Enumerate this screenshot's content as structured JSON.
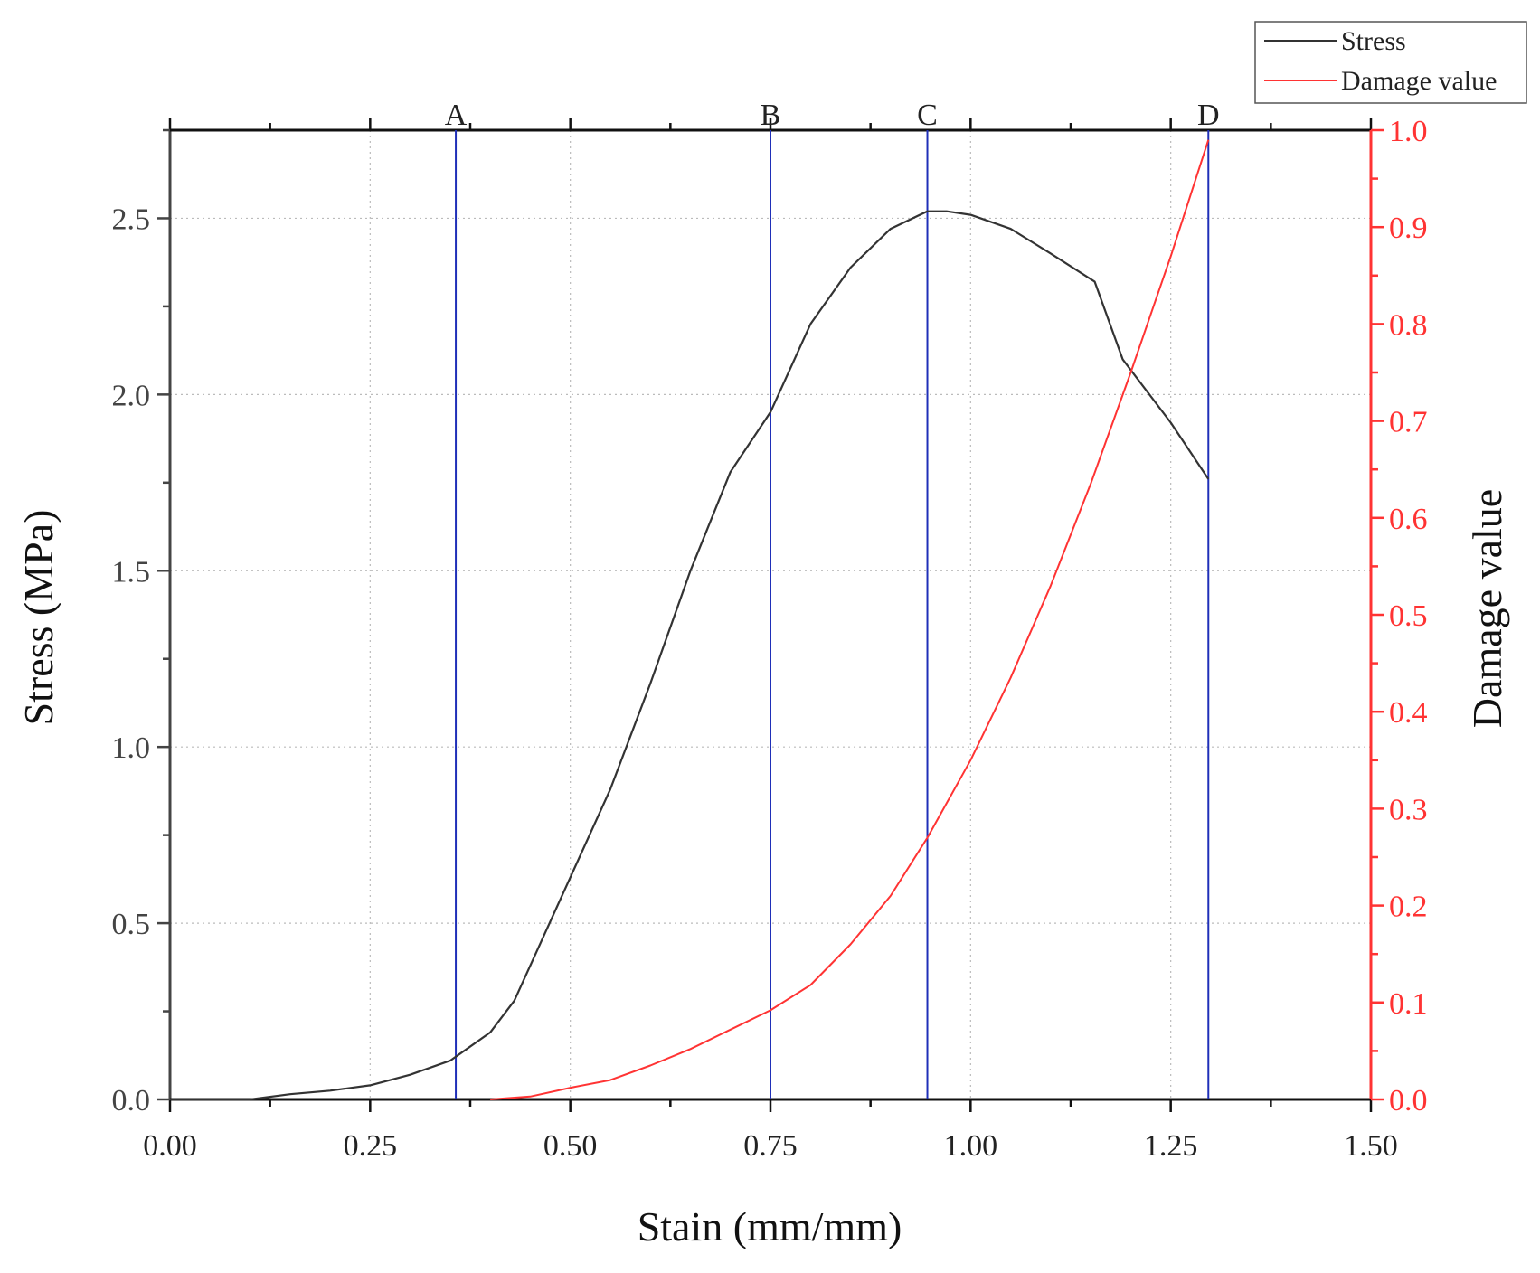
{
  "chart_data": {
    "type": "line",
    "xlabel": "Stain (mm/mm)",
    "ylabel": "Stress (MPa)",
    "y2label": "Damage value",
    "xlim": [
      0,
      1.5
    ],
    "ylim": [
      0,
      2.75
    ],
    "y2lim": [
      0,
      1.0
    ],
    "x_ticks": [
      "0.00",
      "0.25",
      "0.50",
      "0.75",
      "1.00",
      "1.25",
      "1.50"
    ],
    "y_ticks": [
      "0.0",
      "0.5",
      "1.0",
      "1.5",
      "2.0",
      "2.5"
    ],
    "y2_ticks": [
      "0.0",
      "0.1",
      "0.2",
      "0.3",
      "0.4",
      "0.5",
      "0.6",
      "0.7",
      "0.8",
      "0.9",
      "1.0"
    ],
    "grid": true,
    "legend_position": "top-right",
    "markers": [
      {
        "label": "A",
        "x": 0.357
      },
      {
        "label": "B",
        "x": 0.75
      },
      {
        "label": "C",
        "x": 0.946
      },
      {
        "label": "D",
        "x": 1.297
      }
    ],
    "series": [
      {
        "name": "Stress",
        "axis": "left",
        "color": "#333333",
        "points": [
          [
            0.0,
            0.0
          ],
          [
            0.1,
            0.0
          ],
          [
            0.15,
            0.015
          ],
          [
            0.2,
            0.025
          ],
          [
            0.25,
            0.04
          ],
          [
            0.3,
            0.07
          ],
          [
            0.35,
            0.11
          ],
          [
            0.4,
            0.19
          ],
          [
            0.43,
            0.28
          ],
          [
            0.46,
            0.43
          ],
          [
            0.5,
            0.63
          ],
          [
            0.55,
            0.88
          ],
          [
            0.6,
            1.18
          ],
          [
            0.65,
            1.5
          ],
          [
            0.7,
            1.78
          ],
          [
            0.75,
            1.95
          ],
          [
            0.8,
            2.2
          ],
          [
            0.85,
            2.36
          ],
          [
            0.9,
            2.47
          ],
          [
            0.946,
            2.52
          ],
          [
            0.97,
            2.52
          ],
          [
            1.0,
            2.51
          ],
          [
            1.05,
            2.47
          ],
          [
            1.1,
            2.4
          ],
          [
            1.155,
            2.32
          ],
          [
            1.19,
            2.1
          ],
          [
            1.25,
            1.92
          ],
          [
            1.297,
            1.76
          ]
        ]
      },
      {
        "name": "Damage value",
        "axis": "right",
        "color": "#ff3333",
        "points": [
          [
            0.4,
            0.0
          ],
          [
            0.45,
            0.003
          ],
          [
            0.5,
            0.012
          ],
          [
            0.55,
            0.02
          ],
          [
            0.6,
            0.035
          ],
          [
            0.65,
            0.052
          ],
          [
            0.7,
            0.072
          ],
          [
            0.75,
            0.092
          ],
          [
            0.8,
            0.118
          ],
          [
            0.85,
            0.16
          ],
          [
            0.9,
            0.21
          ],
          [
            0.946,
            0.27
          ],
          [
            1.0,
            0.35
          ],
          [
            1.05,
            0.435
          ],
          [
            1.1,
            0.53
          ],
          [
            1.15,
            0.635
          ],
          [
            1.2,
            0.75
          ],
          [
            1.25,
            0.87
          ],
          [
            1.297,
            0.99
          ]
        ]
      }
    ]
  }
}
